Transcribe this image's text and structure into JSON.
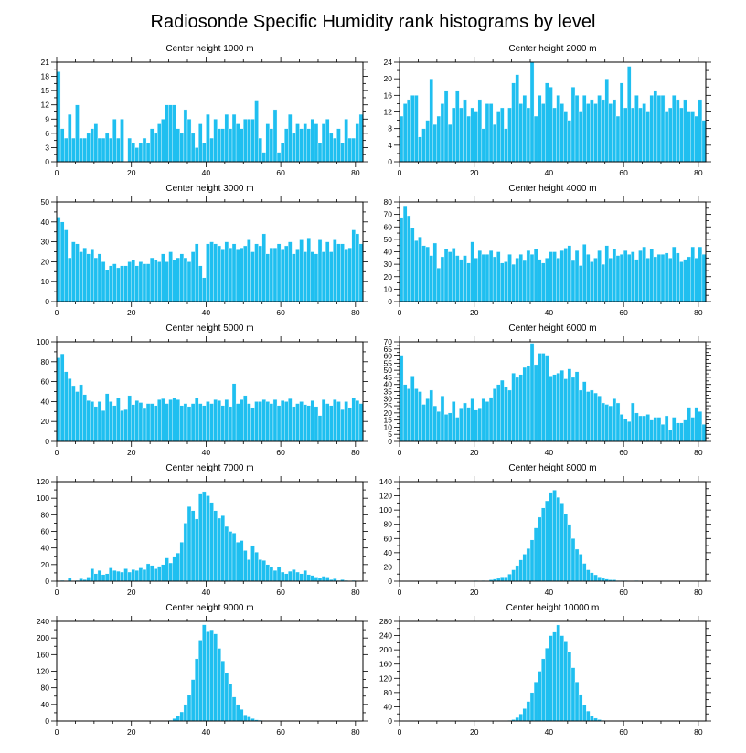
{
  "figure_title": "Radiosonde Specific Humidity rank histograms by level",
  "colors": {
    "bar": "#1fbff0",
    "axis": "#000000"
  },
  "chart_data": [
    {
      "type": "bar",
      "title": "Center height 1000 m",
      "xlim": [
        0,
        82
      ],
      "ylim": [
        0,
        21
      ],
      "xticks": [
        0,
        20,
        40,
        60,
        80
      ],
      "xtick_labels": [
        "0",
        "20",
        "40",
        "60",
        "80"
      ],
      "yticks": [
        0,
        3,
        6,
        9,
        12,
        15,
        18,
        21
      ],
      "ytick_labels": [
        "0",
        "3",
        "6",
        "9",
        "12",
        "15",
        "18",
        "21"
      ],
      "values": [
        19,
        7,
        5,
        10,
        5,
        12,
        5,
        5,
        6,
        7,
        8,
        5,
        5,
        6,
        5,
        9,
        5,
        9,
        0,
        5,
        4,
        3,
        4,
        5,
        4,
        7,
        6,
        8,
        9,
        12,
        12,
        12,
        7,
        6,
        11,
        9,
        6,
        3,
        8,
        4,
        10,
        5,
        9,
        7,
        7,
        10,
        7,
        10,
        8,
        7,
        9,
        9,
        9,
        13,
        5,
        2,
        8,
        7,
        11,
        2,
        4,
        7,
        10,
        6,
        8,
        7,
        8,
        7,
        9,
        8,
        4,
        8,
        9,
        6,
        5,
        7,
        4,
        9,
        5,
        5,
        8,
        10
      ]
    },
    {
      "type": "bar",
      "title": "Center height 2000 m",
      "xlim": [
        0,
        82
      ],
      "ylim": [
        0,
        24
      ],
      "xticks": [
        0,
        20,
        40,
        60,
        80
      ],
      "xtick_labels": [
        "0",
        "20",
        "40",
        "60",
        "80"
      ],
      "yticks": [
        0,
        4,
        8,
        12,
        16,
        20,
        24
      ],
      "ytick_labels": [
        "0",
        "4",
        "8",
        "12",
        "16",
        "20",
        "24"
      ],
      "values": [
        11,
        14,
        15,
        16,
        16,
        6,
        8,
        10,
        20,
        9,
        11,
        14,
        17,
        9,
        13,
        17,
        13,
        15,
        11,
        13,
        12,
        15,
        8,
        14,
        14,
        9,
        12,
        13,
        8,
        13,
        19,
        21,
        14,
        16,
        13,
        24,
        11,
        16,
        14,
        19,
        18,
        13,
        16,
        14,
        12,
        10,
        18,
        16,
        12,
        16,
        14,
        15,
        14,
        16,
        15,
        20,
        14,
        15,
        11,
        19,
        13,
        23,
        13,
        16,
        13,
        14,
        12,
        16,
        17,
        16,
        16,
        12,
        13,
        16,
        15,
        13,
        15,
        12,
        12,
        11,
        15,
        10
      ]
    },
    {
      "type": "bar",
      "title": "Center height 3000 m",
      "xlim": [
        0,
        82
      ],
      "ylim": [
        0,
        50
      ],
      "xticks": [
        0,
        20,
        40,
        60,
        80
      ],
      "xtick_labels": [
        "0",
        "20",
        "40",
        "60",
        "80"
      ],
      "yticks": [
        0,
        10,
        20,
        30,
        40,
        50
      ],
      "ytick_labels": [
        "0",
        "10",
        "20",
        "30",
        "40",
        "50"
      ],
      "values": [
        42,
        40,
        36,
        22,
        30,
        29,
        25,
        27,
        24,
        26,
        22,
        24,
        20,
        16,
        18,
        19,
        17,
        18,
        18,
        20,
        21,
        18,
        20,
        19,
        19,
        22,
        21,
        20,
        24,
        20,
        25,
        21,
        22,
        24,
        22,
        20,
        25,
        29,
        18,
        12,
        29,
        30,
        29,
        28,
        26,
        30,
        27,
        29,
        26,
        27,
        28,
        31,
        25,
        29,
        28,
        34,
        24,
        27,
        27,
        29,
        26,
        28,
        30,
        24,
        26,
        31,
        25,
        32,
        25,
        24,
        31,
        25,
        30,
        25,
        31,
        29,
        29,
        26,
        27,
        36,
        34,
        29
      ]
    },
    {
      "type": "bar",
      "title": "Center height 4000 m",
      "xlim": [
        0,
        82
      ],
      "ylim": [
        0,
        80
      ],
      "xticks": [
        0,
        20,
        40,
        60,
        80
      ],
      "xtick_labels": [
        "0",
        "20",
        "40",
        "60",
        "80"
      ],
      "yticks": [
        0,
        10,
        20,
        30,
        40,
        50,
        60,
        70,
        80
      ],
      "ytick_labels": [
        "0",
        "10",
        "20",
        "30",
        "40",
        "50",
        "60",
        "70",
        "80"
      ],
      "values": [
        67,
        77,
        69,
        59,
        49,
        52,
        45,
        44,
        37,
        47,
        27,
        36,
        42,
        40,
        43,
        37,
        34,
        37,
        31,
        48,
        35,
        41,
        38,
        38,
        41,
        36,
        40,
        31,
        32,
        38,
        30,
        35,
        38,
        33,
        41,
        38,
        42,
        34,
        31,
        35,
        40,
        40,
        35,
        41,
        43,
        45,
        33,
        41,
        29,
        46,
        38,
        32,
        35,
        41,
        30,
        45,
        35,
        42,
        37,
        38,
        41,
        38,
        40,
        34,
        41,
        44,
        35,
        42,
        36,
        38,
        38,
        39,
        35,
        44,
        39,
        32,
        34,
        36,
        44,
        35,
        44,
        38
      ]
    },
    {
      "type": "bar",
      "title": "Center height 5000 m",
      "xlim": [
        0,
        82
      ],
      "ylim": [
        0,
        100
      ],
      "xticks": [
        0,
        20,
        40,
        60,
        80
      ],
      "xtick_labels": [
        "0",
        "20",
        "40",
        "60",
        "80"
      ],
      "yticks": [
        0,
        20,
        40,
        60,
        80,
        100
      ],
      "ytick_labels": [
        "0",
        "20",
        "40",
        "60",
        "80",
        "100"
      ],
      "values": [
        84,
        88,
        70,
        63,
        56,
        50,
        57,
        47,
        41,
        40,
        35,
        40,
        31,
        48,
        40,
        36,
        44,
        31,
        32,
        46,
        37,
        41,
        39,
        33,
        38,
        38,
        36,
        42,
        43,
        38,
        42,
        44,
        42,
        36,
        38,
        35,
        38,
        44,
        38,
        36,
        40,
        38,
        42,
        41,
        36,
        42,
        35,
        58,
        38,
        42,
        46,
        38,
        34,
        40,
        40,
        42,
        40,
        38,
        42,
        36,
        41,
        40,
        43,
        35,
        38,
        40,
        37,
        36,
        41,
        35,
        26,
        42,
        38,
        36,
        42,
        40,
        32,
        40,
        34,
        44,
        41,
        38
      ]
    },
    {
      "type": "bar",
      "title": "Center height 6000 m",
      "xlim": [
        0,
        82
      ],
      "ylim": [
        0,
        70
      ],
      "xticks": [
        0,
        20,
        40,
        60,
        80
      ],
      "xtick_labels": [
        "0",
        "20",
        "40",
        "60",
        "80"
      ],
      "yticks": [
        0,
        5,
        10,
        15,
        20,
        25,
        30,
        35,
        40,
        45,
        50,
        55,
        60,
        65,
        70
      ],
      "ytick_labels": [
        "0",
        "5",
        "10",
        "15",
        "20",
        "25",
        "30",
        "35",
        "40",
        "45",
        "50",
        "55",
        "60",
        "65",
        "70"
      ],
      "values": [
        60,
        40,
        37,
        46,
        37,
        35,
        26,
        30,
        36,
        25,
        21,
        32,
        19,
        20,
        28,
        17,
        23,
        27,
        24,
        30,
        22,
        23,
        30,
        28,
        31,
        37,
        40,
        43,
        38,
        36,
        48,
        45,
        47,
        52,
        53,
        69,
        54,
        62,
        62,
        60,
        46,
        47,
        48,
        50,
        44,
        51,
        45,
        49,
        36,
        42,
        35,
        36,
        34,
        32,
        27,
        26,
        25,
        30,
        27,
        19,
        16,
        14,
        27,
        20,
        18,
        18,
        19,
        15,
        17,
        17,
        12,
        18,
        8,
        17,
        13,
        13,
        15,
        24,
        17,
        24,
        21,
        12
      ]
    },
    {
      "type": "bar",
      "title": "Center height 7000 m",
      "xlim": [
        0,
        82
      ],
      "ylim": [
        0,
        120
      ],
      "xticks": [
        0,
        20,
        40,
        60,
        80
      ],
      "xtick_labels": [
        "0",
        "20",
        "40",
        "60",
        "80"
      ],
      "yticks": [
        0,
        20,
        40,
        60,
        80,
        100,
        120
      ],
      "ytick_labels": [
        "0",
        "20",
        "40",
        "60",
        "80",
        "100",
        "120"
      ],
      "values": [
        0,
        1,
        0,
        4,
        0,
        1,
        3,
        2,
        5,
        15,
        9,
        13,
        8,
        9,
        16,
        13,
        12,
        11,
        15,
        11,
        14,
        13,
        16,
        14,
        21,
        19,
        15,
        18,
        20,
        28,
        22,
        30,
        34,
        47,
        70,
        90,
        85,
        75,
        105,
        108,
        103,
        95,
        85,
        76,
        79,
        66,
        60,
        58,
        47,
        49,
        37,
        26,
        43,
        35,
        26,
        25,
        20,
        17,
        13,
        17,
        11,
        9,
        12,
        14,
        11,
        9,
        13,
        8,
        7,
        5,
        4,
        6,
        5,
        2,
        3,
        1,
        2,
        1,
        0,
        1,
        0,
        0
      ]
    },
    {
      "type": "bar",
      "title": "Center height 8000 m",
      "xlim": [
        0,
        82
      ],
      "ylim": [
        0,
        140
      ],
      "xticks": [
        0,
        20,
        40,
        60,
        80
      ],
      "xtick_labels": [
        "0",
        "20",
        "40",
        "60",
        "80"
      ],
      "yticks": [
        0,
        20,
        40,
        60,
        80,
        100,
        120,
        140
      ],
      "ytick_labels": [
        "0",
        "20",
        "40",
        "60",
        "80",
        "100",
        "120",
        "140"
      ],
      "values": [
        0,
        0,
        0,
        0,
        0,
        0,
        0,
        0,
        0,
        0,
        0,
        0,
        0,
        0,
        0,
        0,
        0,
        0,
        0,
        0,
        1,
        0,
        1,
        0,
        2,
        3,
        4,
        6,
        6,
        10,
        16,
        22,
        30,
        38,
        46,
        58,
        75,
        90,
        103,
        113,
        125,
        128,
        118,
        110,
        95,
        80,
        60,
        45,
        38,
        25,
        16,
        12,
        9,
        6,
        4,
        3,
        2,
        2,
        1,
        1,
        1,
        0,
        0,
        1,
        0,
        0,
        0,
        0,
        0,
        0,
        0,
        0,
        0,
        0,
        0,
        0,
        0,
        0,
        0,
        0,
        0,
        0
      ]
    },
    {
      "type": "bar",
      "title": "Center height 9000 m",
      "xlim": [
        0,
        82
      ],
      "ylim": [
        0,
        240
      ],
      "xticks": [
        0,
        20,
        40,
        60,
        80
      ],
      "xtick_labels": [
        "0",
        "20",
        "40",
        "60",
        "80"
      ],
      "yticks": [
        0,
        40,
        80,
        120,
        160,
        200,
        240
      ],
      "ytick_labels": [
        "0",
        "40",
        "80",
        "120",
        "160",
        "200",
        "240"
      ],
      "values": [
        0,
        0,
        0,
        0,
        0,
        0,
        0,
        0,
        0,
        0,
        0,
        0,
        0,
        0,
        0,
        0,
        0,
        0,
        0,
        0,
        0,
        0,
        0,
        0,
        0,
        0,
        0,
        0,
        0,
        0,
        2,
        6,
        12,
        22,
        40,
        62,
        100,
        150,
        195,
        232,
        215,
        220,
        210,
        175,
        145,
        115,
        90,
        58,
        40,
        28,
        15,
        10,
        6,
        3,
        2,
        1,
        1,
        0,
        0,
        0,
        0,
        0,
        0,
        0,
        0,
        0,
        0,
        0,
        0,
        0,
        0,
        0,
        0,
        0,
        0,
        0,
        0,
        0,
        0,
        0,
        0,
        0
      ]
    },
    {
      "type": "bar",
      "title": "Center height 10000 m",
      "xlim": [
        0,
        82
      ],
      "ylim": [
        0,
        280
      ],
      "xticks": [
        0,
        20,
        40,
        60,
        80
      ],
      "xtick_labels": [
        "0",
        "20",
        "40",
        "60",
        "80"
      ],
      "yticks": [
        0,
        40,
        80,
        120,
        160,
        200,
        240,
        280
      ],
      "ytick_labels": [
        "0",
        "40",
        "80",
        "120",
        "160",
        "200",
        "240",
        "280"
      ],
      "values": [
        0,
        0,
        0,
        0,
        0,
        0,
        0,
        0,
        0,
        0,
        0,
        0,
        0,
        0,
        0,
        0,
        0,
        0,
        0,
        0,
        0,
        0,
        0,
        0,
        0,
        0,
        0,
        0,
        0,
        2,
        4,
        10,
        20,
        35,
        55,
        80,
        110,
        140,
        175,
        205,
        240,
        250,
        270,
        240,
        225,
        195,
        150,
        110,
        75,
        45,
        28,
        15,
        8,
        4,
        2,
        1,
        0,
        0,
        0,
        0,
        0,
        0,
        0,
        0,
        0,
        0,
        0,
        0,
        0,
        0,
        0,
        0,
        0,
        0,
        0,
        0,
        0,
        0,
        0,
        0,
        0,
        0
      ]
    }
  ]
}
